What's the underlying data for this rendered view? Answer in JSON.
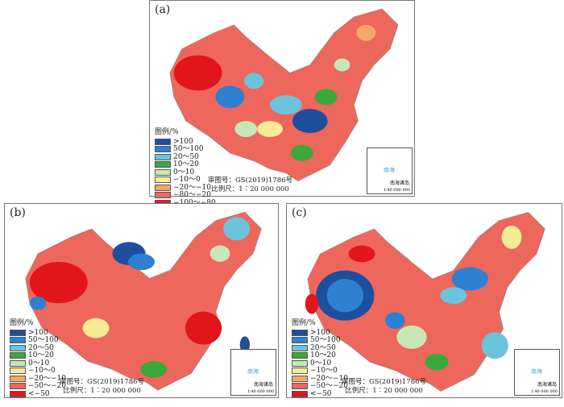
{
  "panels": [
    {
      "label": "(a)",
      "legend": {
        "title": "图例/%",
        "items": [
          ">100",
          "50～100",
          "20～50",
          "10～20",
          "0～10",
          "−10～0",
          "−20～−10",
          "−80～−20",
          "−100～−80"
        ]
      },
      "approval": "审图号：GS(2019)1786号",
      "scale": "比例尺：1∶20 000 000",
      "inset": {
        "title": "南海诸岛",
        "scale": "1∶40 000 000",
        "sea": "南海"
      }
    },
    {
      "label": "(b)",
      "legend": {
        "title": "图例/%",
        "items": [
          ">100",
          "50～100",
          "20～50",
          "10～20",
          "0～10",
          "−10～0",
          "−20～−10",
          "−50～−20",
          "<−50"
        ]
      },
      "approval": "审图号：GS(2019)1786号",
      "scale": "比例尺：1∶20 000 000",
      "inset": {
        "title": "南海诸岛",
        "scale": "1∶40 000 000",
        "sea": "南海"
      }
    },
    {
      "label": "(c)",
      "legend": {
        "title": "图例/%",
        "items": [
          ">100",
          "50～100",
          "20～50",
          "10～20",
          "0～10",
          "−10～0",
          "−20～−10",
          "−50～−20",
          "<−50"
        ]
      },
      "approval": "审图号：GS(2019)1786号",
      "scale": "比例尺：1∶20 000 000",
      "inset": {
        "title": "南海诸岛",
        "scale": "1∶40 000 000",
        "sea": "南海"
      }
    }
  ],
  "colors": [
    "#1d4f9e",
    "#2f80d0",
    "#6cc4dc",
    "#3aa83a",
    "#c8e6b6",
    "#f6ec93",
    "#f4a766",
    "#ee675c",
    "#e3151c"
  ]
}
